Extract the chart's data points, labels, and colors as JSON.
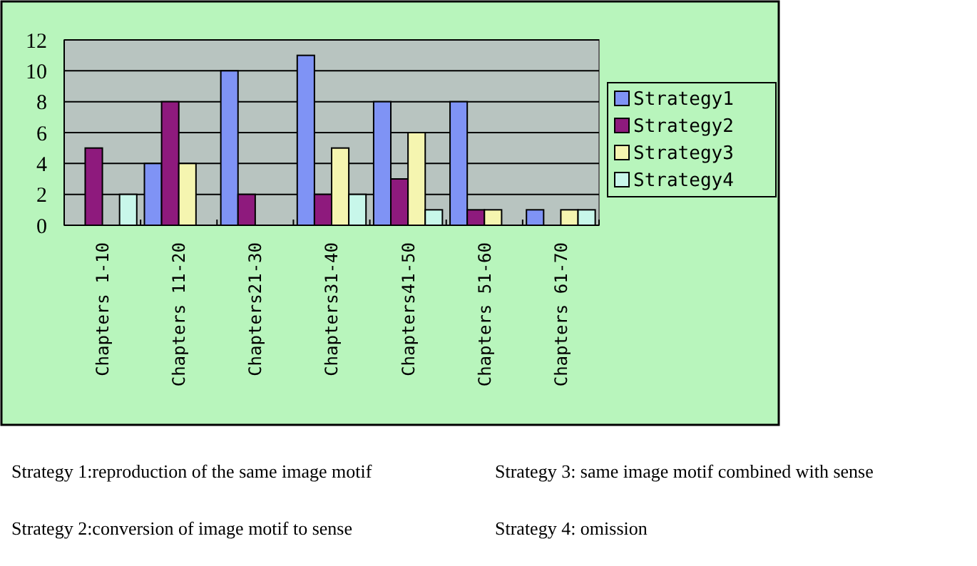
{
  "chart_data": {
    "type": "bar",
    "categories": [
      "Chapters 1-10",
      "Chapters 11-20",
      "Chapters21-30",
      "Chapters31-40",
      "Chapters41-50",
      "Chapters 51-60",
      "Chapters 61-70"
    ],
    "series": [
      {
        "name": "Strategy1",
        "color": "#7f93f5",
        "values": [
          0,
          4,
          10,
          11,
          8,
          8,
          1
        ]
      },
      {
        "name": "Strategy2",
        "color": "#8e1a7d",
        "values": [
          5,
          8,
          2,
          2,
          3,
          1,
          0
        ]
      },
      {
        "name": "Strategy3",
        "color": "#f5f5b0",
        "values": [
          0,
          4,
          0,
          5,
          6,
          1,
          1
        ]
      },
      {
        "name": "Strategy4",
        "color": "#c8f7ea",
        "values": [
          2,
          0,
          0,
          2,
          1,
          0,
          1
        ]
      }
    ],
    "ylim": [
      0,
      12
    ],
    "yticks": [
      0,
      2,
      4,
      6,
      8,
      10,
      12
    ],
    "grid": "y",
    "legend": "right",
    "annotations": [
      "Strategy 1:reproduction of the same image motif",
      "Strategy 3: same image motif combined with sense",
      "Strategy 2:conversion of image motif to sense",
      "Strategy 4: omission"
    ]
  }
}
